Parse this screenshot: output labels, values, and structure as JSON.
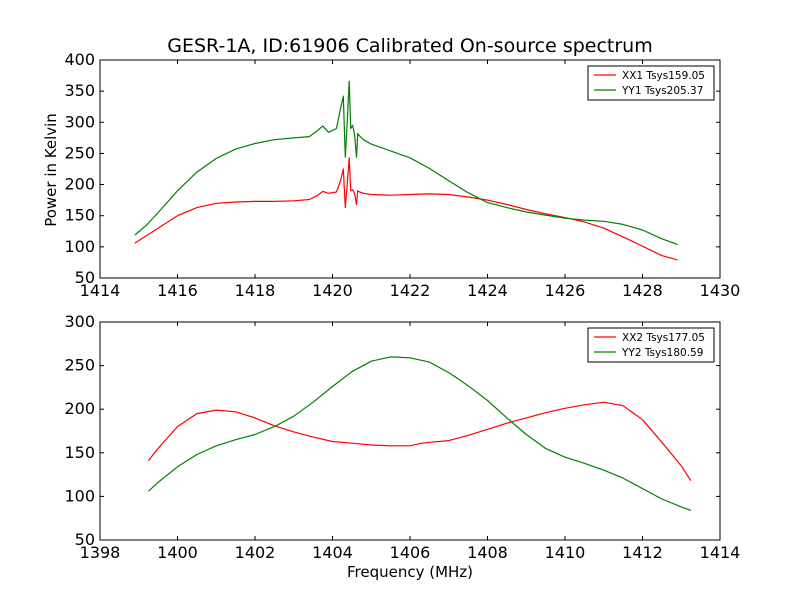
{
  "chart_data": [
    {
      "type": "line",
      "title": "GESR-1A, ID:61906 Calibrated On-source spectrum",
      "xlabel": "",
      "ylabel": "Power in Kelvin",
      "xlim": [
        1414,
        1430
      ],
      "ylim": [
        50,
        400
      ],
      "xticks": [
        1414,
        1416,
        1418,
        1420,
        1422,
        1424,
        1426,
        1428,
        1430
      ],
      "yticks": [
        50,
        100,
        150,
        200,
        250,
        300,
        350,
        400
      ],
      "legend_position": "top-right",
      "series": [
        {
          "name": "XX1 Tsys159.05",
          "color": "#ff0000",
          "x": [
            1414.9,
            1415.2,
            1415.5,
            1416.0,
            1416.5,
            1417.0,
            1417.5,
            1418.0,
            1418.5,
            1419.0,
            1419.4,
            1419.6,
            1419.75,
            1419.9,
            1420.1,
            1420.2,
            1420.28,
            1420.33,
            1420.38,
            1420.43,
            1420.47,
            1420.52,
            1420.57,
            1420.62,
            1420.65,
            1420.7,
            1420.8,
            1421.0,
            1421.5,
            1422.0,
            1422.5,
            1423.0,
            1423.5,
            1424.0,
            1424.5,
            1425.0,
            1425.5,
            1426.0,
            1426.5,
            1427.0,
            1427.5,
            1428.0,
            1428.5,
            1428.9
          ],
          "values": [
            106,
            118,
            130,
            150,
            163,
            170,
            172,
            173,
            173,
            174,
            176,
            182,
            189,
            186,
            188,
            205,
            225,
            163,
            200,
            243,
            190,
            192,
            185,
            168,
            190,
            188,
            186,
            184,
            183,
            184,
            185,
            184,
            180,
            175,
            168,
            160,
            153,
            147,
            140,
            130,
            116,
            101,
            86,
            79
          ]
        },
        {
          "name": "YY1 Tsys205.37",
          "color": "#008000",
          "x": [
            1414.9,
            1415.2,
            1415.5,
            1416.0,
            1416.5,
            1417.0,
            1417.5,
            1418.0,
            1418.5,
            1419.0,
            1419.4,
            1419.6,
            1419.75,
            1419.9,
            1420.1,
            1420.2,
            1420.28,
            1420.33,
            1420.38,
            1420.43,
            1420.47,
            1420.52,
            1420.57,
            1420.62,
            1420.65,
            1420.7,
            1420.8,
            1421.0,
            1421.5,
            1422.0,
            1422.5,
            1423.0,
            1423.5,
            1424.0,
            1424.5,
            1425.0,
            1425.5,
            1426.0,
            1426.5,
            1427.0,
            1427.5,
            1428.0,
            1428.5,
            1428.9
          ],
          "values": [
            119,
            135,
            155,
            190,
            220,
            242,
            257,
            266,
            272,
            275,
            277,
            286,
            294,
            284,
            290,
            320,
            342,
            244,
            300,
            366,
            290,
            295,
            280,
            244,
            282,
            278,
            272,
            265,
            254,
            243,
            226,
            206,
            187,
            171,
            163,
            156,
            151,
            146,
            143,
            141,
            136,
            127,
            113,
            104
          ]
        }
      ]
    },
    {
      "type": "line",
      "title": "",
      "xlabel": "Frequency (MHz)",
      "ylabel": "",
      "xlim": [
        1398,
        1414
      ],
      "ylim": [
        50,
        300
      ],
      "xticks": [
        1398,
        1400,
        1402,
        1404,
        1406,
        1408,
        1410,
        1412,
        1414
      ],
      "yticks": [
        50,
        100,
        150,
        200,
        250,
        300
      ],
      "legend_position": "top-right",
      "series": [
        {
          "name": "XX2 Tsys177.05",
          "color": "#ff0000",
          "x": [
            1399.25,
            1399.5,
            1400.0,
            1400.5,
            1401.0,
            1401.5,
            1402.0,
            1402.5,
            1403.0,
            1403.5,
            1404.0,
            1404.5,
            1405.0,
            1405.5,
            1406.0,
            1406.2,
            1406.3,
            1406.5,
            1407.0,
            1407.5,
            1408.0,
            1408.5,
            1409.0,
            1409.5,
            1410.0,
            1410.5,
            1411.0,
            1411.5,
            1412.0,
            1412.5,
            1413.0,
            1413.25
          ],
          "values": [
            141,
            155,
            180,
            195,
            199,
            197,
            190,
            181,
            174,
            168,
            163,
            161,
            159,
            158,
            158,
            160,
            161,
            162,
            164,
            170,
            177,
            184,
            190,
            196,
            201,
            205,
            208,
            204,
            188,
            162,
            135,
            118
          ]
        },
        {
          "name": "YY2 Tsys180.59",
          "color": "#008000",
          "x": [
            1399.25,
            1399.5,
            1400.0,
            1400.5,
            1401.0,
            1401.5,
            1402.0,
            1402.5,
            1403.0,
            1403.5,
            1404.0,
            1404.5,
            1405.0,
            1405.5,
            1406.0,
            1406.5,
            1407.0,
            1407.5,
            1408.0,
            1408.5,
            1409.0,
            1409.5,
            1410.0,
            1410.5,
            1411.0,
            1411.5,
            1412.0,
            1412.5,
            1413.0,
            1413.25
          ],
          "values": [
            106,
            116,
            134,
            148,
            158,
            165,
            171,
            180,
            192,
            208,
            226,
            243,
            255,
            260,
            259,
            254,
            242,
            227,
            210,
            190,
            171,
            155,
            145,
            138,
            130,
            121,
            109,
            97,
            88,
            84
          ]
        }
      ]
    }
  ]
}
